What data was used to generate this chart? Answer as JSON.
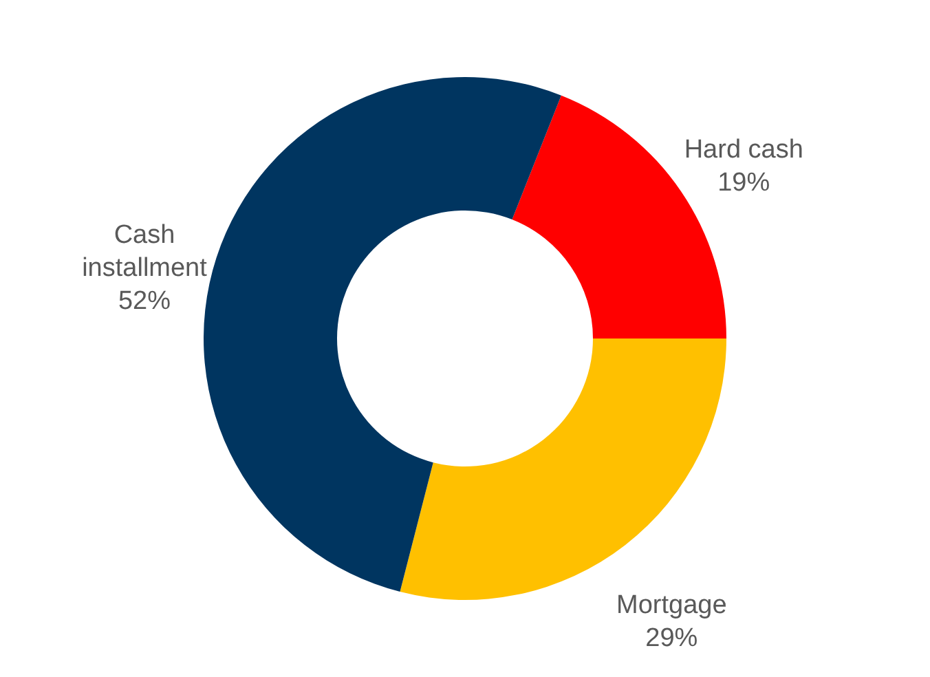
{
  "chart_data": {
    "type": "donut",
    "categories": [
      "Hard cash",
      "Mortgage",
      "Cash installment"
    ],
    "values": [
      19,
      29,
      52
    ],
    "colors": [
      "#ff0000",
      "#ffc000",
      "#003560"
    ],
    "value_labels": [
      "19%",
      "29%",
      "52%"
    ],
    "legend": false
  }
}
